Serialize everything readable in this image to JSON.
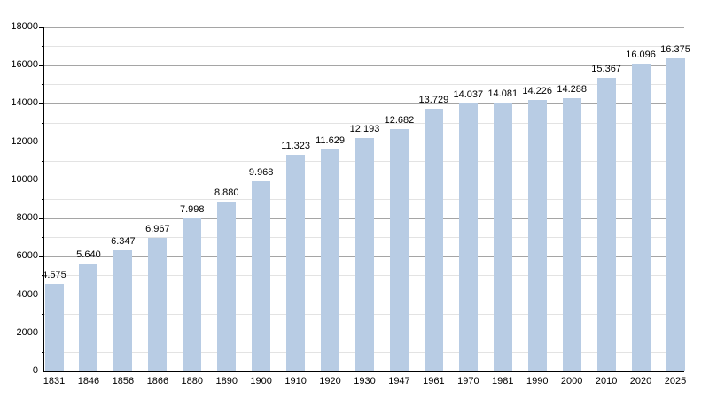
{
  "page": {
    "background": "#ffffff"
  },
  "chart_data": {
    "type": "bar",
    "title": "",
    "xlabel": "",
    "ylabel": "",
    "categories": [
      "1831",
      "1846",
      "1856",
      "1866",
      "1880",
      "1890",
      "1900",
      "1910",
      "1920",
      "1930",
      "1947",
      "1961",
      "1970",
      "1981",
      "1990",
      "2000",
      "2010",
      "2020",
      "2025"
    ],
    "values": [
      4575,
      5640,
      6347,
      6967,
      7998,
      8880,
      9968,
      11323,
      11629,
      12193,
      12682,
      13729,
      14037,
      14081,
      14226,
      14288,
      15367,
      16096,
      16375
    ],
    "value_labels": [
      "4.575",
      "5.640",
      "6.347",
      "6.967",
      "7.998",
      "8.880",
      "9.968",
      "11.323",
      "11.629",
      "12.193",
      "12.682",
      "13.729",
      "14.037",
      "14.081",
      "14.226",
      "14.288",
      "15.367",
      "16.096",
      "16.375"
    ],
    "ylim": [
      0,
      18000
    ],
    "y_major_step": 2000,
    "y_minor_step": 1000,
    "y_tick_labels": [
      "0",
      "2000",
      "4000",
      "6000",
      "8000",
      "10000",
      "12000",
      "14000",
      "16000",
      "18000"
    ],
    "grid": true,
    "legend_position": "none",
    "colors": {
      "bar": "#b8cce4",
      "major_grid": "#a5a5a5",
      "minor_grid": "#e3e3e3",
      "axis": "#000000",
      "label_text": "#000000"
    }
  }
}
